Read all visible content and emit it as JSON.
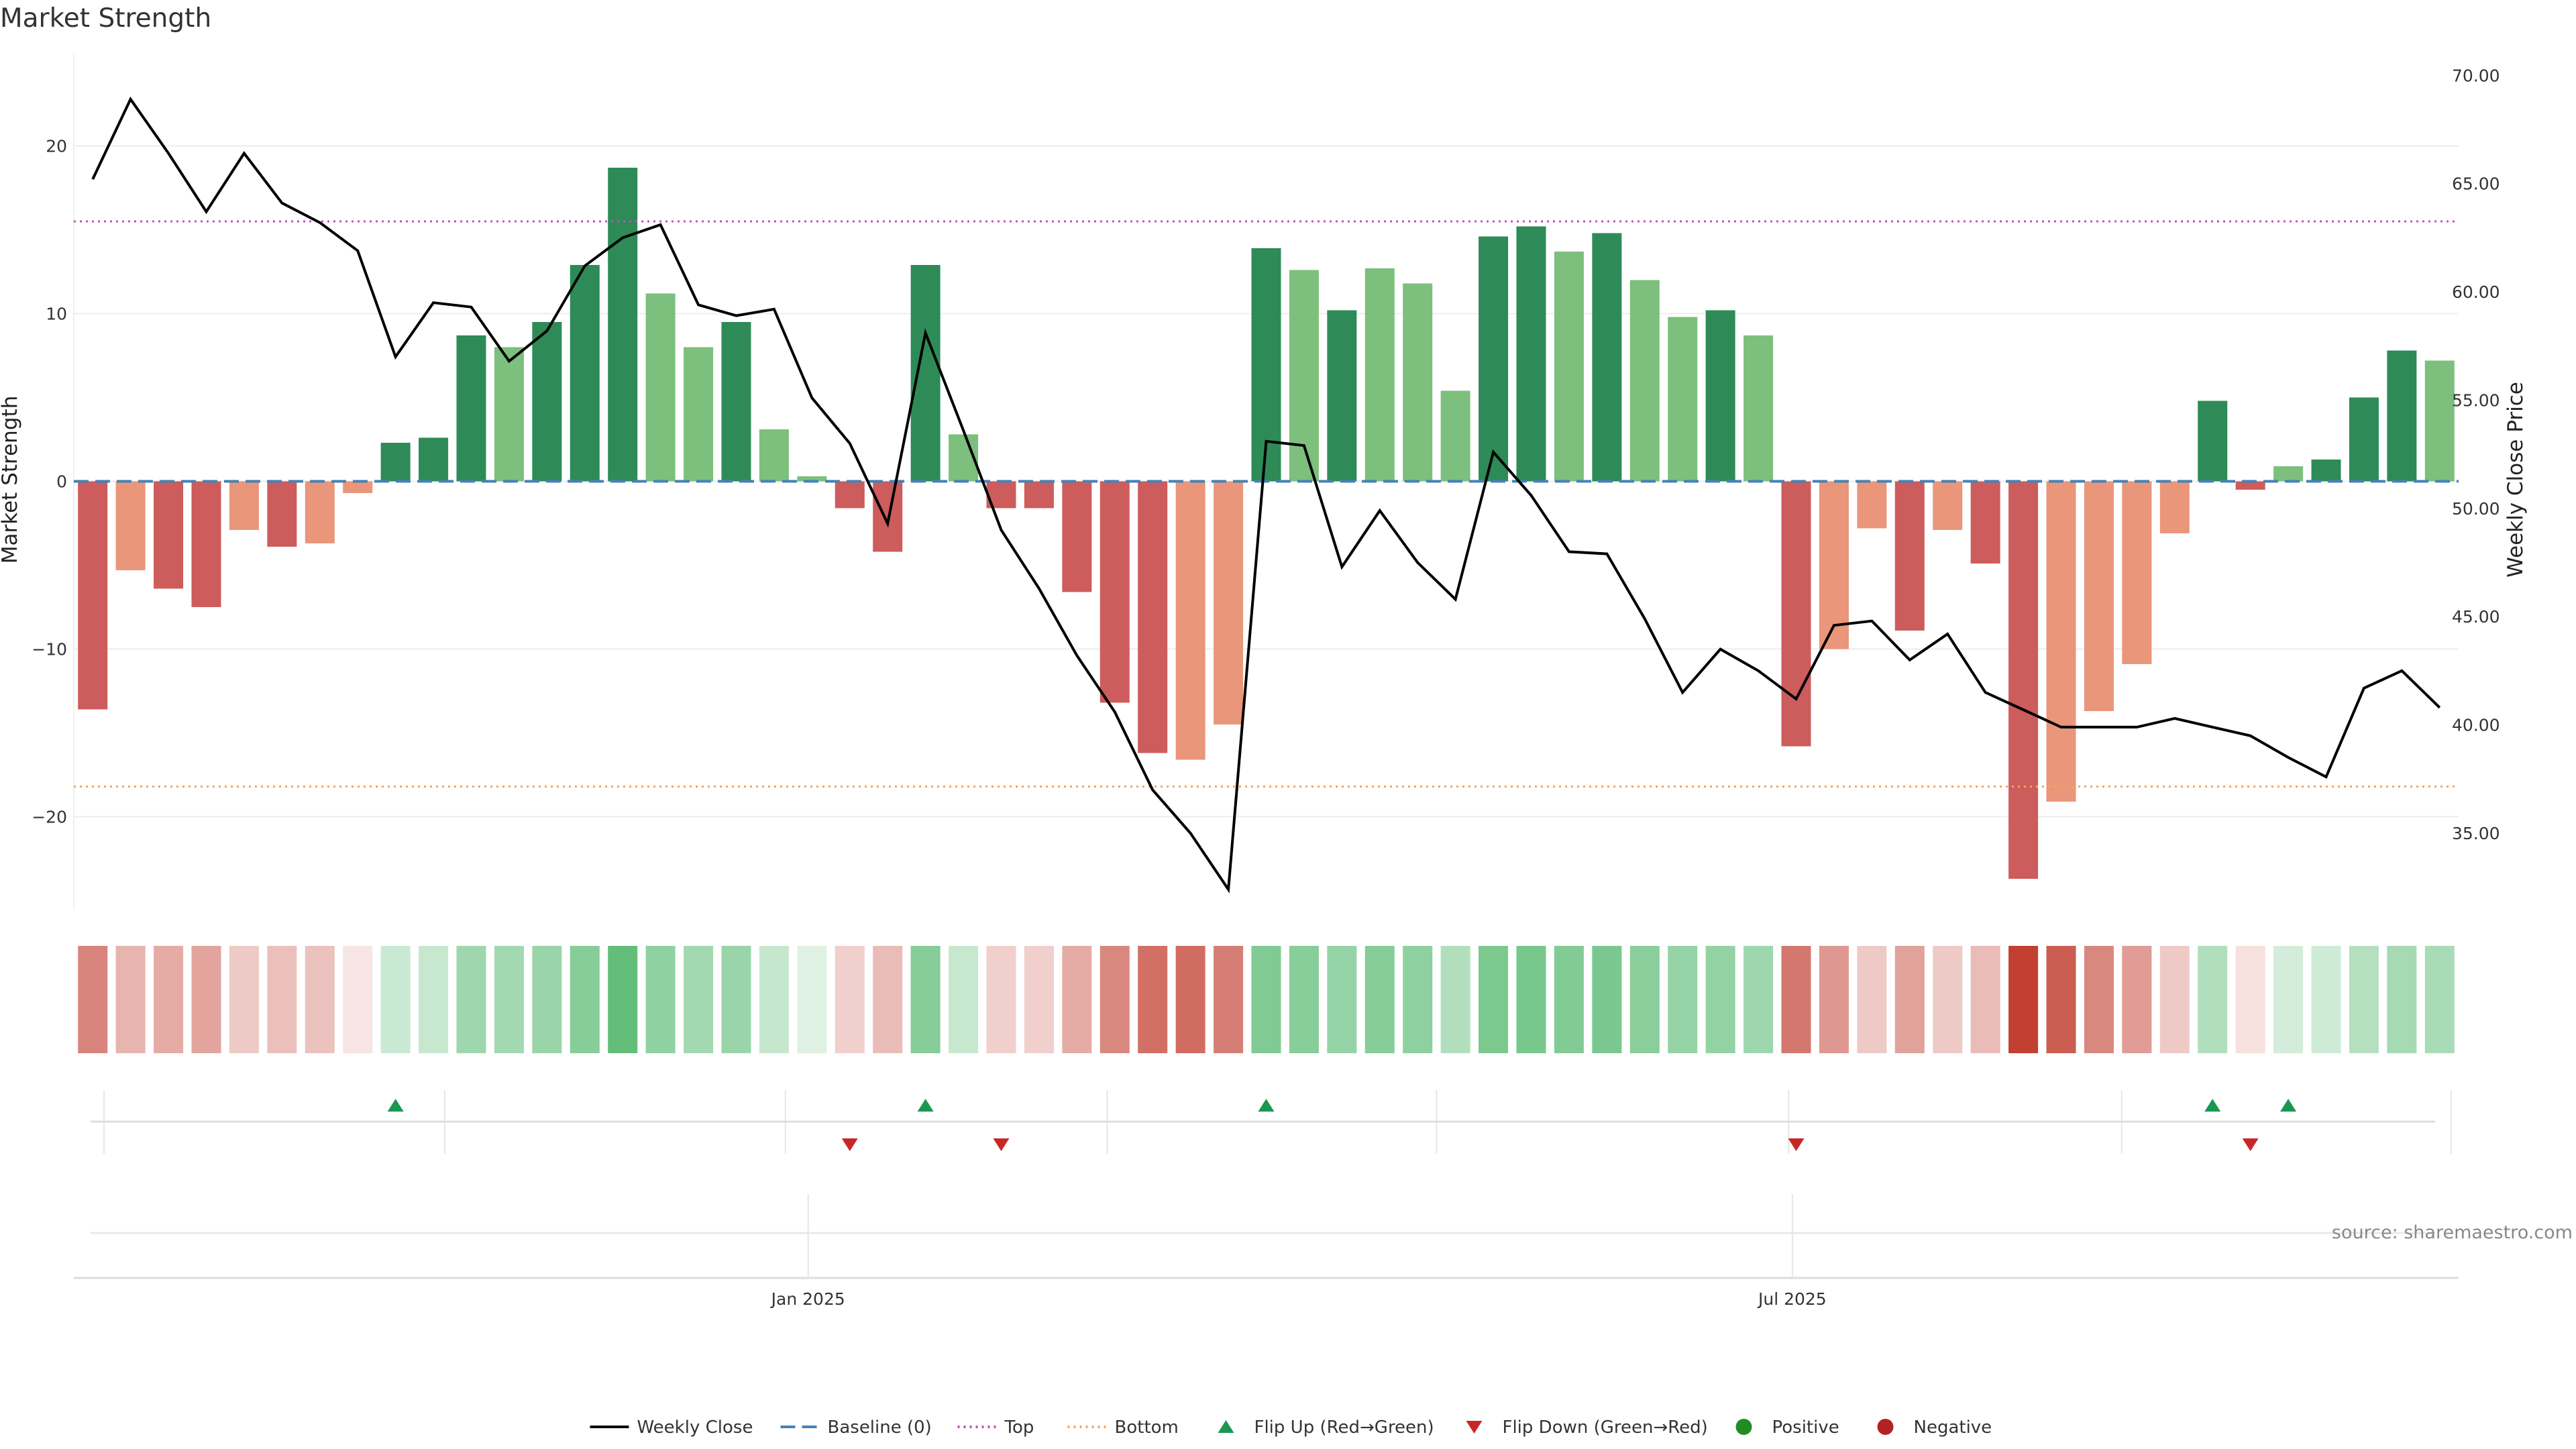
{
  "chart_data": {
    "type": "bar",
    "title": "Market Strength",
    "ylabel_left": "Market Strength",
    "ylabel_right": "Weekly Close Price",
    "source": "source: sharemaestro.com",
    "left_axis": {
      "min": -25.5,
      "max": 25.5,
      "ticks": [
        20,
        10,
        0,
        -10,
        -20
      ],
      "tick_labels": [
        "20",
        "10",
        "0",
        "−10",
        "−20"
      ]
    },
    "right_axis": {
      "min": 31.5,
      "max": 71.0,
      "ticks": [
        70,
        65,
        60,
        55,
        50,
        45,
        40,
        35
      ],
      "tick_labels": [
        "70.00",
        "65.00",
        "60.00",
        "55.00",
        "50.00",
        "45.00",
        "40.00",
        "35.00"
      ]
    },
    "x_ticks": [
      {
        "index": 18.5,
        "label": "Jan 2025"
      },
      {
        "index": 44.5,
        "label": "Jul 2025"
      }
    ],
    "top_line": 15.5,
    "bottom_line": -18.2,
    "baseline": 0,
    "strength": [
      -13.6,
      -5.3,
      -6.4,
      -7.5,
      -2.9,
      -3.9,
      -3.7,
      -0.7,
      2.3,
      2.6,
      8.7,
      8.0,
      9.5,
      12.9,
      18.7,
      11.2,
      8.0,
      9.5,
      3.1,
      0.3,
      -1.6,
      -4.2,
      12.9,
      2.8,
      -1.6,
      -1.6,
      -6.6,
      -13.2,
      -16.2,
      -16.6,
      -14.5,
      13.9,
      12.6,
      10.2,
      12.7,
      11.8,
      5.4,
      14.6,
      15.2,
      13.7,
      14.8,
      12.0,
      9.8,
      10.2,
      8.7,
      -15.8,
      -10.0,
      -2.8,
      -8.9,
      -2.9,
      -4.9,
      -23.7,
      -19.1,
      -13.7,
      -10.9,
      -3.1,
      4.8,
      -0.5,
      0.9,
      1.3,
      5.0,
      7.8,
      7.2
    ],
    "weekly_close": [
      65.2,
      68.9,
      66.4,
      63.7,
      66.4,
      64.1,
      63.2,
      61.9,
      57.0,
      59.5,
      59.3,
      56.8,
      58.2,
      61.2,
      62.5,
      63.1,
      59.4,
      58.9,
      59.2,
      55.1,
      53.0,
      49.3,
      58.1,
      53.6,
      49.0,
      46.3,
      43.2,
      40.6,
      37.0,
      35.0,
      32.4,
      53.1,
      52.9,
      47.3,
      49.9,
      47.5,
      45.8,
      52.6,
      50.6,
      48.0,
      47.9,
      44.9,
      41.5,
      43.5,
      42.5,
      41.2,
      44.6,
      44.8,
      43.0,
      44.2,
      41.5,
      40.7,
      39.9,
      39.9,
      39.9,
      40.3,
      39.9,
      39.5,
      38.5,
      37.6,
      41.7,
      42.5,
      40.8
    ],
    "strip_intensity": [
      0.62,
      0.38,
      0.42,
      0.46,
      0.27,
      0.32,
      0.31,
      0.13,
      0.27,
      0.29,
      0.5,
      0.47,
      0.52,
      0.62,
      0.8,
      0.57,
      0.47,
      0.52,
      0.3,
      0.17,
      0.24,
      0.34,
      0.62,
      0.29,
      0.24,
      0.24,
      0.42,
      0.6,
      0.72,
      0.74,
      0.65,
      0.65,
      0.61,
      0.54,
      0.62,
      0.58,
      0.4,
      0.67,
      0.69,
      0.64,
      0.68,
      0.6,
      0.54,
      0.56,
      0.5,
      0.68,
      0.52,
      0.27,
      0.47,
      0.27,
      0.34,
      0.97,
      0.82,
      0.6,
      0.5,
      0.27,
      0.4,
      0.15,
      0.22,
      0.25,
      0.38,
      0.46,
      0.44
    ],
    "flip_up_indices": [
      8,
      22,
      31,
      56,
      58
    ],
    "flip_down_indices": [
      20,
      24,
      45,
      57
    ],
    "legend": [
      "Weekly Close",
      "Baseline (0)",
      "Top",
      "Bottom",
      "Flip Up (Red→Green)",
      "Flip Down (Green→Red)",
      "Positive",
      "Negative"
    ]
  },
  "colors": {
    "strong_green": "#2e8b57",
    "light_green": "#7dbf7d",
    "strong_red": "#cd5c5c",
    "light_red": "#e9967a",
    "close_line": "#000000",
    "baseline": "#4682b4",
    "top": "#c050c0",
    "bottom": "#f4a460",
    "flip_up": "#1a9850",
    "flip_down": "#c62828",
    "positive": "#228b22",
    "negative": "#b22222",
    "strip_green": "#3cae5a",
    "strip_red": "#c0392b"
  }
}
